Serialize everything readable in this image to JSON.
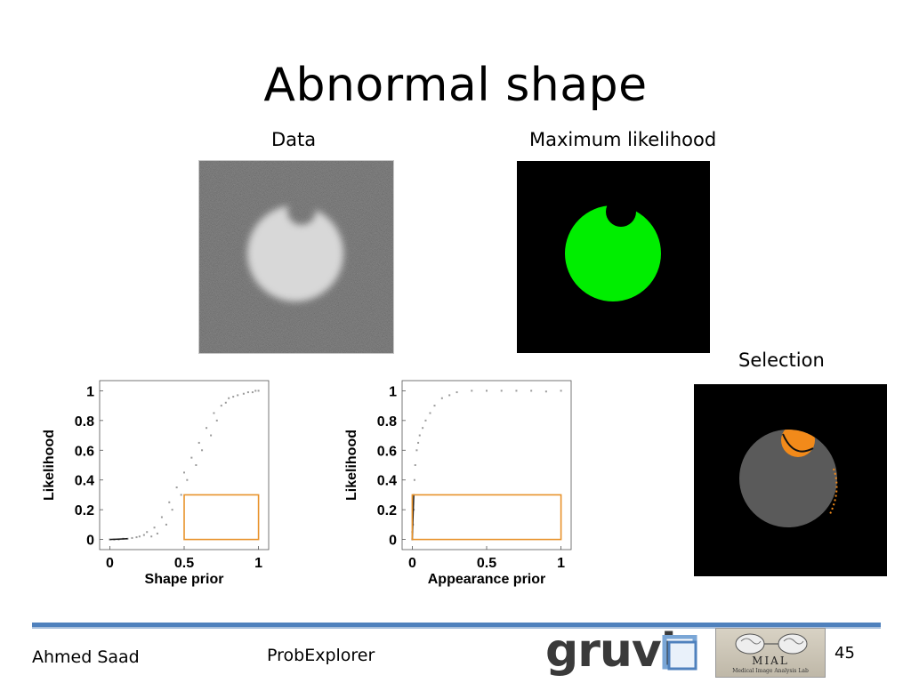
{
  "slide": {
    "title": "Abnormal shape",
    "captions": {
      "data": "Data",
      "max_likelihood": "Maximum likelihood",
      "selection": "Selection"
    },
    "footer": {
      "author": "Ahmed Saad",
      "project": "ProbExplorer",
      "page": "45"
    },
    "logos": {
      "gruvi_text": "gruvi",
      "mial_text": "MIAL",
      "mial_subtext": "Medical Image Analysis Lab"
    },
    "colors": {
      "segmentation": "#00ee00",
      "selected_region": "#f28a1a",
      "unselected_region": "#5a5a5a",
      "selection_box": "#e8922a",
      "footer_rule": "#4f81bd"
    }
  },
  "chart_data": [
    {
      "type": "scatter",
      "title": "",
      "xlabel": "Shape prior",
      "ylabel": "Likelihood",
      "xlim": [
        0,
        1
      ],
      "ylim": [
        0,
        1
      ],
      "xticks": [
        "0",
        "0.5",
        "1"
      ],
      "yticks": [
        "0",
        "0.2",
        "0.4",
        "0.6",
        "0.8",
        "1"
      ],
      "points": [
        [
          0.0,
          0.0
        ],
        [
          0.03,
          0.0
        ],
        [
          0.06,
          0.0
        ],
        [
          0.09,
          0.005
        ],
        [
          0.12,
          0.005
        ],
        [
          0.15,
          0.01
        ],
        [
          0.18,
          0.015
        ],
        [
          0.2,
          0.02
        ],
        [
          0.23,
          0.03
        ],
        [
          0.25,
          0.05
        ],
        [
          0.28,
          0.02
        ],
        [
          0.3,
          0.08
        ],
        [
          0.32,
          0.04
        ],
        [
          0.35,
          0.15
        ],
        [
          0.38,
          0.1
        ],
        [
          0.4,
          0.25
        ],
        [
          0.42,
          0.2
        ],
        [
          0.45,
          0.35
        ],
        [
          0.48,
          0.3
        ],
        [
          0.5,
          0.45
        ],
        [
          0.52,
          0.4
        ],
        [
          0.55,
          0.55
        ],
        [
          0.58,
          0.5
        ],
        [
          0.6,
          0.65
        ],
        [
          0.62,
          0.6
        ],
        [
          0.65,
          0.75
        ],
        [
          0.68,
          0.7
        ],
        [
          0.7,
          0.85
        ],
        [
          0.72,
          0.8
        ],
        [
          0.75,
          0.9
        ],
        [
          0.78,
          0.92
        ],
        [
          0.8,
          0.95
        ],
        [
          0.83,
          0.96
        ],
        [
          0.86,
          0.97
        ],
        [
          0.9,
          0.98
        ],
        [
          0.93,
          0.99
        ],
        [
          0.96,
          0.99
        ],
        [
          0.98,
          1.0
        ],
        [
          1.0,
          1.0
        ]
      ],
      "selection_box": {
        "x": [
          0.5,
          1.0
        ],
        "y": [
          0.0,
          0.3
        ]
      }
    },
    {
      "type": "scatter",
      "title": "",
      "xlabel": "Appearance prior",
      "ylabel": "Likelihood",
      "xlim": [
        0,
        1
      ],
      "ylim": [
        0,
        1
      ],
      "xticks": [
        "0",
        "0.5",
        "1"
      ],
      "yticks": [
        "0",
        "0.2",
        "0.4",
        "0.6",
        "0.8",
        "1"
      ],
      "points": [
        [
          0.0,
          0.0
        ],
        [
          0.0,
          0.05
        ],
        [
          0.005,
          0.1
        ],
        [
          0.01,
          0.2
        ],
        [
          0.01,
          0.3
        ],
        [
          0.015,
          0.4
        ],
        [
          0.02,
          0.5
        ],
        [
          0.03,
          0.6
        ],
        [
          0.04,
          0.65
        ],
        [
          0.05,
          0.7
        ],
        [
          0.07,
          0.75
        ],
        [
          0.09,
          0.8
        ],
        [
          0.12,
          0.85
        ],
        [
          0.15,
          0.9
        ],
        [
          0.2,
          0.95
        ],
        [
          0.25,
          0.97
        ],
        [
          0.3,
          0.99
        ],
        [
          0.4,
          1.0
        ],
        [
          0.5,
          1.0
        ],
        [
          0.6,
          1.0
        ],
        [
          0.7,
          1.0
        ],
        [
          0.8,
          1.0
        ],
        [
          0.9,
          0.995
        ],
        [
          1.0,
          1.0
        ]
      ],
      "selection_box": {
        "x": [
          0.0,
          1.0
        ],
        "y": [
          0.0,
          0.3
        ]
      }
    }
  ]
}
